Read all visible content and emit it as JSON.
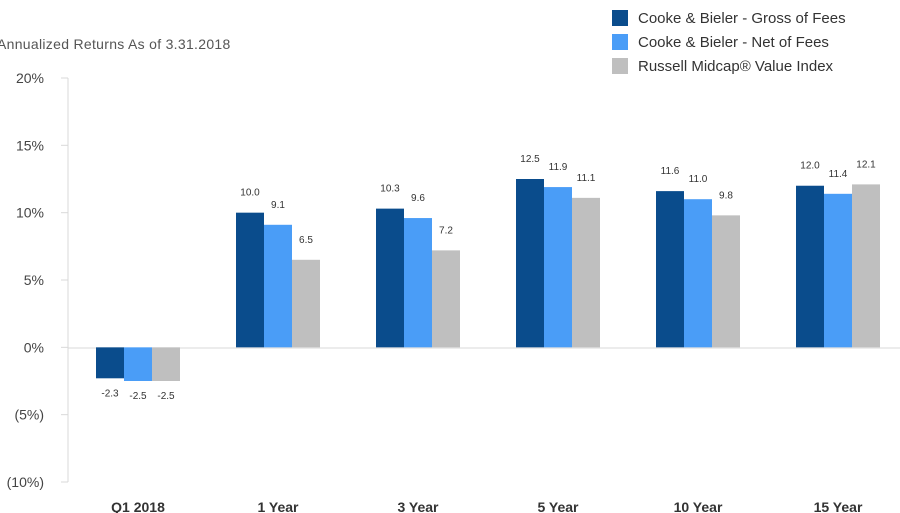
{
  "chart_data": {
    "type": "bar",
    "title": "Annualized Returns As of 3.31.2018",
    "xlabel": "",
    "ylabel": "",
    "categories": [
      "Q1 2018",
      "1 Year",
      "3 Year",
      "5 Year",
      "10 Year",
      "15 Year"
    ],
    "series": [
      {
        "name": "Cooke & Bieler - Gross of Fees",
        "color": "#0a4c8c",
        "values": [
          -2.3,
          10.0,
          10.3,
          12.5,
          11.6,
          12.0
        ]
      },
      {
        "name": "Cooke & Bieler - Net of Fees",
        "color": "#4a9df7",
        "values": [
          -2.5,
          9.1,
          9.6,
          11.9,
          11.0,
          11.4
        ]
      },
      {
        "name": "Russell Midcap® Value Index",
        "color": "#bfbfbf",
        "values": [
          -2.5,
          6.5,
          7.2,
          11.1,
          9.8,
          12.1
        ]
      }
    ],
    "data_labels": [
      [
        "-2.3",
        "10.0",
        "10.3",
        "12.5",
        "11.6",
        "12.0"
      ],
      [
        "-2.5",
        "9.1",
        "9.6",
        "11.9",
        "11.0",
        "11.4"
      ],
      [
        "-2.5",
        "6.5",
        "7.2",
        "11.1",
        "9.8",
        "12.1"
      ]
    ],
    "ylim": [
      -10,
      20
    ],
    "yticks": [
      20,
      15,
      10,
      5,
      0,
      -5,
      -10
    ],
    "ytick_labels": [
      "20%",
      "15%",
      "10%",
      "5%",
      "0%",
      "(5%)",
      "(10%)"
    ],
    "grid": false,
    "legend_position": "top-right"
  }
}
